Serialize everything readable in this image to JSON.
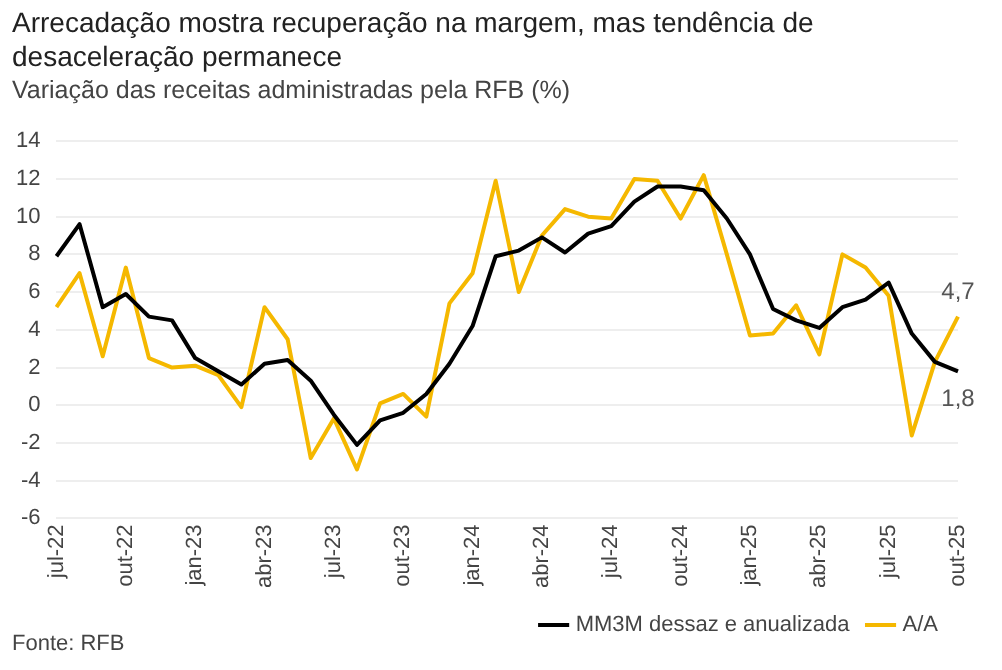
{
  "chart_data": {
    "type": "line",
    "title": "Arrecadação mostra recuperação na margem, mas tendência de desaceleração permanece",
    "subtitle": "Variação das receitas administradas pela RFB (%)",
    "categories": [
      "jul-22",
      null,
      null,
      "out-22",
      null,
      null,
      "jan-23",
      null,
      null,
      "abr-23",
      null,
      null,
      "jul-23",
      null,
      null,
      "out-23",
      null,
      null,
      "jan-24",
      null,
      null,
      "abr-24",
      null,
      null,
      "jul-24",
      null,
      null,
      "out-24",
      null,
      null,
      "jan-25",
      null,
      null,
      "abr-25",
      null,
      null,
      "jul-25",
      null,
      null,
      "out-25"
    ],
    "series": [
      {
        "name": "MM3M dessaz e anualizada",
        "color": "#000000",
        "values": [
          7.9,
          9.6,
          5.2,
          5.9,
          4.7,
          4.5,
          2.5,
          1.8,
          1.1,
          2.2,
          2.4,
          1.3,
          -0.5,
          -2.1,
          -0.8,
          -0.4,
          0.6,
          2.2,
          4.2,
          7.9,
          8.2,
          8.9,
          8.1,
          9.1,
          9.5,
          10.8,
          11.6,
          11.6,
          11.4,
          9.9,
          8.0,
          5.1,
          4.5,
          4.1,
          5.2,
          5.6,
          6.5,
          3.8,
          2.3,
          1.8
        ],
        "value_labels": [
          null,
          null,
          null,
          null,
          null,
          null,
          null,
          null,
          null,
          null,
          null,
          null,
          null,
          null,
          null,
          null,
          null,
          null,
          null,
          null,
          null,
          null,
          null,
          null,
          null,
          null,
          null,
          null,
          null,
          null,
          null,
          null,
          null,
          null,
          null,
          null,
          null,
          null,
          null,
          "1,8"
        ]
      },
      {
        "name": "A/A",
        "color": "#f5b800",
        "values": [
          5.2,
          7.0,
          2.6,
          7.3,
          2.5,
          2.0,
          2.1,
          1.6,
          -0.1,
          5.2,
          3.5,
          -2.8,
          -0.7,
          -3.4,
          0.1,
          0.6,
          -0.6,
          5.4,
          7.0,
          11.9,
          6.0,
          9.0,
          10.4,
          10.0,
          9.9,
          12.0,
          11.9,
          9.9,
          12.2,
          8.0,
          3.7,
          3.8,
          5.3,
          2.7,
          8.0,
          7.3,
          5.8,
          -1.6,
          2.3,
          4.7
        ],
        "value_labels": [
          null,
          null,
          null,
          null,
          null,
          null,
          null,
          null,
          null,
          null,
          null,
          null,
          null,
          null,
          null,
          null,
          null,
          null,
          null,
          null,
          null,
          null,
          null,
          null,
          null,
          null,
          null,
          null,
          null,
          null,
          null,
          null,
          null,
          null,
          null,
          null,
          null,
          null,
          null,
          "4,7"
        ]
      }
    ],
    "ylim": [
      -6,
      14
    ],
    "yticks": [
      -6,
      -4,
      -2,
      0,
      2,
      4,
      6,
      8,
      10,
      12,
      14
    ],
    "grid": "y",
    "legend": "bottom right",
    "marker": "none",
    "line_style": "solid",
    "annotations": [
      "Fonte: RFB"
    ]
  }
}
